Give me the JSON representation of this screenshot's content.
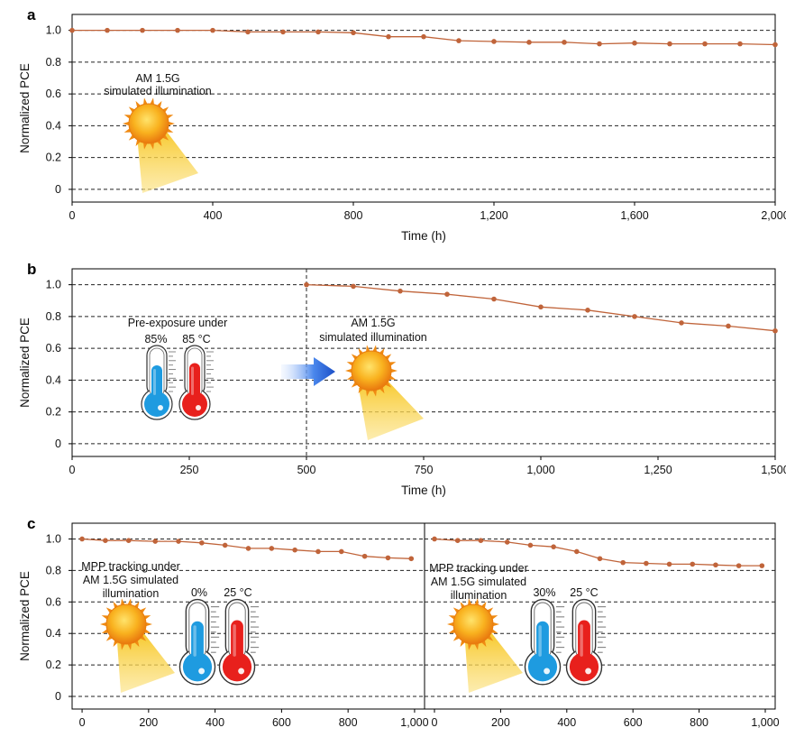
{
  "colors": {
    "series": "#c0643a",
    "marker": "#c0643a",
    "cold": "#1e9be0",
    "hot": "#e8201c",
    "arrow": "#1e5fcc",
    "sun": "#f5a21a"
  },
  "chart_data": [
    {
      "panel": "a",
      "type": "line",
      "xlabel": "Time (h)",
      "ylabel": "Normalized PCE",
      "xlim": [
        0,
        2000
      ],
      "ylim": [
        -0.08,
        1.1
      ],
      "xticks": [
        0,
        400,
        800,
        1200,
        1600,
        2000
      ],
      "xtick_labels": [
        "0",
        "400",
        "800",
        "1,200",
        "1,600",
        "2,000"
      ],
      "yticks": [
        0,
        0.2,
        0.4,
        0.6,
        0.8,
        1.0
      ],
      "ytick_labels": [
        "0",
        "0.2",
        "0.4",
        "0.6",
        "0.8",
        "1.0"
      ],
      "grid": "horizontal dashed",
      "annotations": [
        "AM 1.5G",
        "simulated illumination"
      ],
      "series": [
        {
          "name": "Normalized PCE",
          "x": [
            0,
            100,
            200,
            300,
            400,
            500,
            600,
            700,
            800,
            900,
            1000,
            1100,
            1200,
            1300,
            1400,
            1500,
            1600,
            1700,
            1800,
            1900,
            2000
          ],
          "y": [
            1.0,
            1.0,
            1.0,
            1.0,
            1.0,
            0.99,
            0.99,
            0.99,
            0.985,
            0.96,
            0.96,
            0.935,
            0.93,
            0.925,
            0.925,
            0.915,
            0.92,
            0.915,
            0.915,
            0.915,
            0.91
          ]
        }
      ]
    },
    {
      "panel": "b",
      "type": "line",
      "xlabel": "Time (h)",
      "ylabel": "Normalized PCE",
      "xlim": [
        0,
        1500
      ],
      "ylim": [
        -0.08,
        1.1
      ],
      "xticks": [
        0,
        250,
        500,
        750,
        1000,
        1250,
        1500
      ],
      "xtick_labels": [
        "0",
        "250",
        "500",
        "750",
        "1,000",
        "1,250",
        "1,500"
      ],
      "yticks": [
        0,
        0.2,
        0.4,
        0.6,
        0.8,
        1.0
      ],
      "ytick_labels": [
        "0",
        "0.2",
        "0.4",
        "0.6",
        "0.8",
        "1.0"
      ],
      "grid": "horizontal dashed",
      "vline_x": 500,
      "annotations": [
        "Pre-exposure under",
        "85%",
        "85 °C",
        "AM 1.5G",
        "simulated illumination"
      ],
      "series": [
        {
          "name": "Normalized PCE",
          "x": [
            500,
            600,
            700,
            800,
            900,
            1000,
            1100,
            1200,
            1300,
            1400,
            1500
          ],
          "y": [
            1.0,
            0.99,
            0.96,
            0.94,
            0.91,
            0.86,
            0.84,
            0.8,
            0.76,
            0.74,
            0.71
          ]
        }
      ]
    },
    {
      "panel": "c-left",
      "type": "line",
      "xlabel": "",
      "ylabel": "Normalized PCE",
      "xlim": [
        -30,
        1030
      ],
      "ylim": [
        -0.08,
        1.1
      ],
      "xticks": [
        0,
        200,
        400,
        600,
        800,
        1000
      ],
      "xtick_labels": [
        "0",
        "200",
        "400",
        "600",
        "800",
        "1,000"
      ],
      "yticks": [
        0,
        0.2,
        0.4,
        0.6,
        0.8,
        1.0
      ],
      "ytick_labels": [
        "0",
        "0.2",
        "0.4",
        "0.6",
        "0.8",
        "1.0"
      ],
      "grid": "horizontal dashed",
      "annotations": [
        "MPP tracking under",
        "AM 1.5G simulated",
        "illumination",
        "0%",
        "25 °C"
      ],
      "series": [
        {
          "name": "Normalized PCE",
          "x": [
            0,
            70,
            140,
            220,
            290,
            360,
            430,
            500,
            570,
            640,
            710,
            780,
            850,
            920,
            990
          ],
          "y": [
            1.0,
            0.99,
            0.99,
            0.985,
            0.985,
            0.975,
            0.96,
            0.94,
            0.94,
            0.93,
            0.92,
            0.92,
            0.89,
            0.88,
            0.875
          ]
        }
      ]
    },
    {
      "panel": "c-right",
      "type": "line",
      "xlabel": "",
      "ylabel": "",
      "xlim": [
        -30,
        1030
      ],
      "ylim": [
        -0.08,
        1.1
      ],
      "xticks": [
        0,
        200,
        400,
        600,
        800,
        1000
      ],
      "xtick_labels": [
        "0",
        "200",
        "400",
        "600",
        "800",
        "1,000"
      ],
      "yticks": [
        0,
        0.2,
        0.4,
        0.6,
        0.8,
        1.0
      ],
      "grid": "horizontal dashed",
      "annotations": [
        "MPP tracking under",
        "AM 1.5G simulated",
        "illumination",
        "30%",
        "25 °C"
      ],
      "series": [
        {
          "name": "Normalized PCE",
          "x": [
            0,
            70,
            140,
            220,
            290,
            360,
            430,
            500,
            570,
            640,
            710,
            780,
            850,
            920,
            990
          ],
          "y": [
            1.0,
            0.99,
            0.99,
            0.98,
            0.96,
            0.95,
            0.92,
            0.875,
            0.85,
            0.845,
            0.84,
            0.84,
            0.835,
            0.83,
            0.83
          ]
        }
      ]
    }
  ],
  "panels": {
    "a": "a",
    "b": "b",
    "c": "c"
  }
}
